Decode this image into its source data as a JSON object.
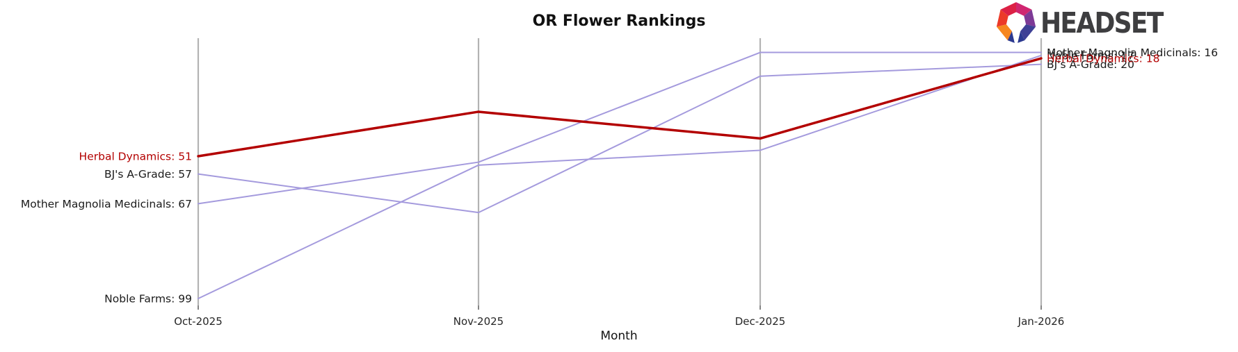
{
  "header": {
    "brand_name": "HEADSET"
  },
  "chart_data": {
    "type": "line",
    "title": "OR Flower Rankings",
    "xlabel": "Month",
    "ylabel": "",
    "categories": [
      "Oct-2025",
      "Nov-2025",
      "Dec-2025",
      "Jan-2026"
    ],
    "y_axis": {
      "inverted": true,
      "meaning": "ranking (lower number = better rank)",
      "visible_ticks": false
    },
    "grid": "vertical-only",
    "legend": "none",
    "line_label_style": "name-and-value at both ends",
    "series": [
      {
        "name": "Herbal Dynamics",
        "color": "#b30000",
        "width": 3.5,
        "values": [
          51,
          36,
          45,
          18
        ]
      },
      {
        "name": "BJ's A-Grade",
        "color": "#a49add",
        "width": 2,
        "values": [
          57,
          70,
          24,
          20
        ]
      },
      {
        "name": "Mother Magnolia Medicinals",
        "color": "#a49add",
        "width": 2,
        "values": [
          67,
          53,
          16,
          16
        ]
      },
      {
        "name": "Noble Farms",
        "color": "#a49add",
        "width": 2,
        "values": [
          99,
          54,
          49,
          17
        ]
      }
    ],
    "start_labels": [
      "Herbal Dynamics: 51",
      "BJ's A-Grade: 57",
      "Mother Magnolia Medicinals: 67",
      "Noble Farms: 99"
    ],
    "end_labels": [
      "Mother Magnolia Medicinals: 16",
      "Noble Farms: 17",
      "Herbal Dynamics: 18",
      "BJ's A-Grade: 20"
    ],
    "colors": {
      "highlight_line": "#b30000",
      "other_lines": "#a49add",
      "gridline": "#b3b3b3",
      "tick_text": "#262626",
      "label_text": "#1a1a1a"
    }
  }
}
